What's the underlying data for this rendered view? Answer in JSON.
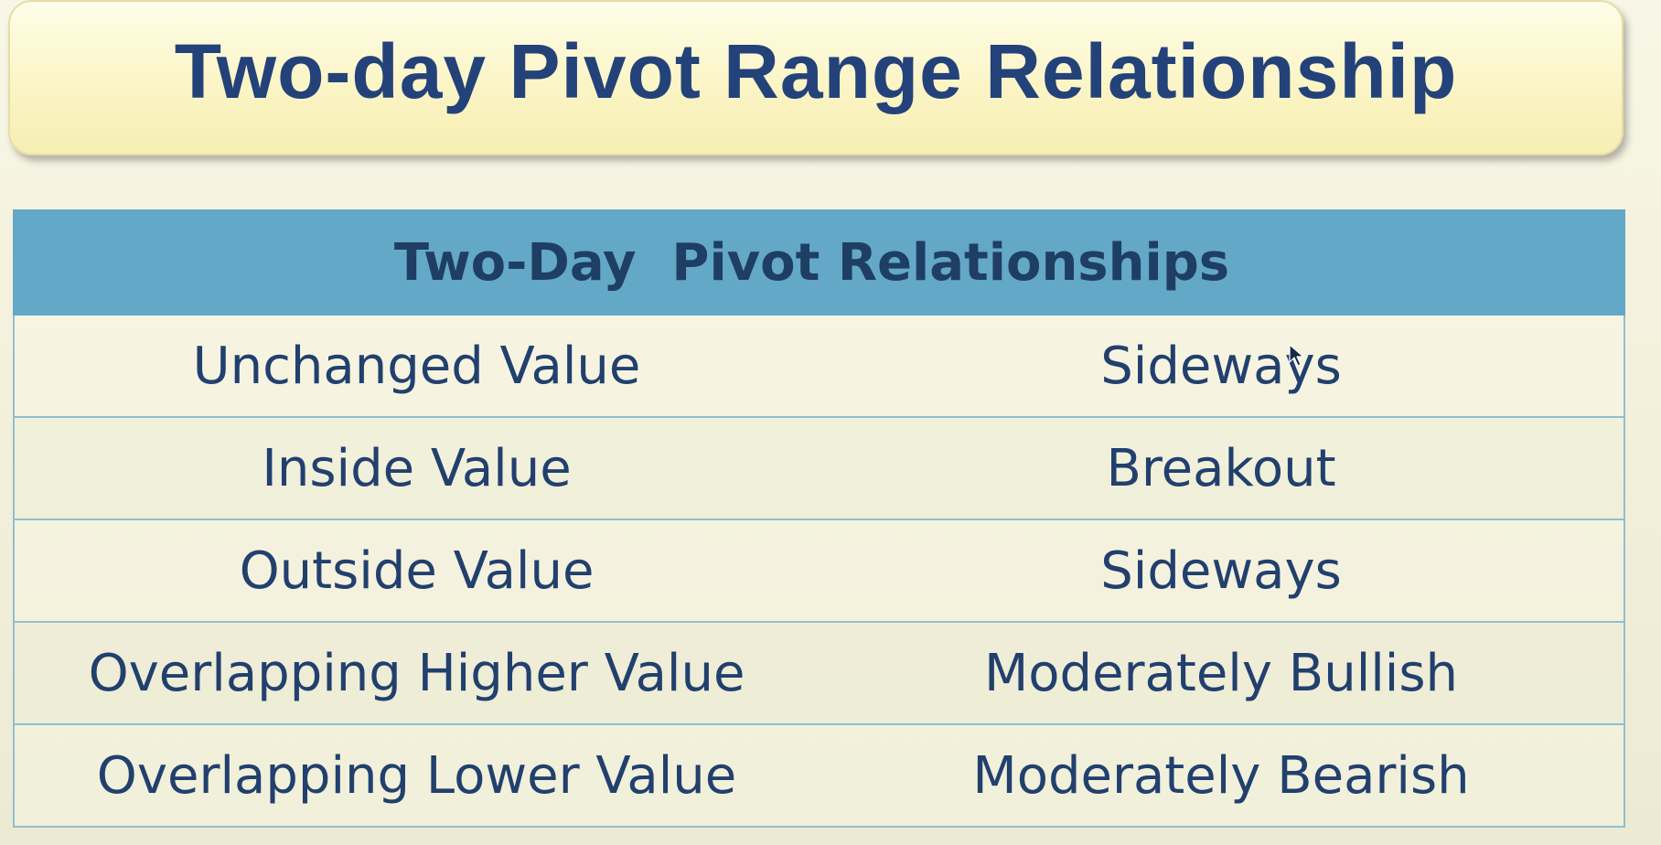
{
  "slide": {
    "title": "Two-day Pivot Range Relationship"
  },
  "table": {
    "header": "Two-Day  Pivot Relationships",
    "rows": [
      {
        "relationship": "Unchanged Value",
        "outlook": "Sideways"
      },
      {
        "relationship": "Inside Value",
        "outlook": "Breakout"
      },
      {
        "relationship": "Outside Value",
        "outlook": "Sideways"
      },
      {
        "relationship": "Overlapping Higher Value",
        "outlook": "Moderately Bullish"
      },
      {
        "relationship": "Overlapping Lower Value",
        "outlook": "Moderately Bearish"
      }
    ]
  },
  "colors": {
    "title_text": "#24427a",
    "header_background": "#63a8c6",
    "body_text": "#22406e"
  },
  "icons": {
    "cursor": "mouse-pointer-icon"
  }
}
